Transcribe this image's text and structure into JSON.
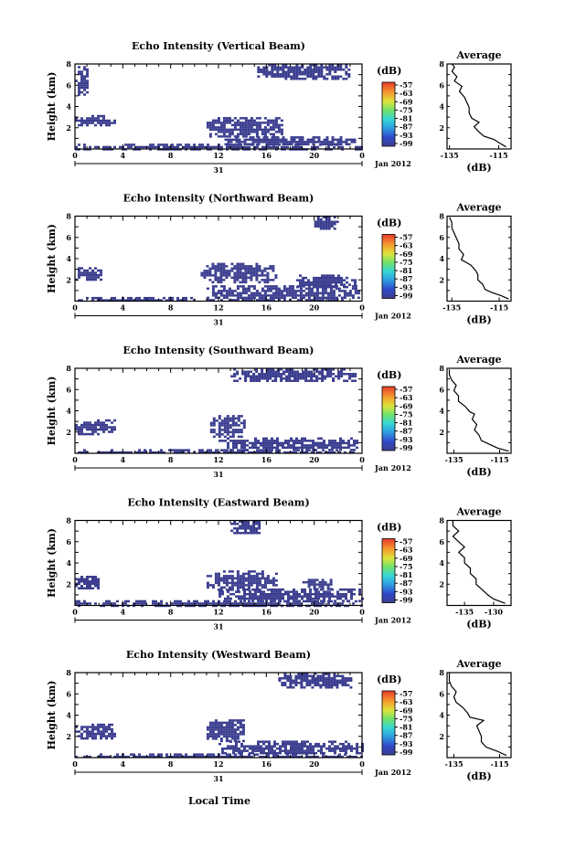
{
  "figure": {
    "xlabel": "Local Time",
    "date_label": "Jan 2012",
    "day_label": "31",
    "cbar_unit": "(dB)",
    "avg_title": "Average",
    "avg_xlabel": "(dB)"
  },
  "chart_data": [
    {
      "type": "heatmap",
      "title": "Echo Intensity (Vertical Beam)",
      "ylabel": "Height (km)",
      "xlim": [
        0,
        24
      ],
      "x_ticks": [
        "0",
        "4",
        "8",
        "12",
        "16",
        "20",
        "0"
      ],
      "ylim": [
        0,
        8
      ],
      "y_ticks": [
        "2",
        "4",
        "6",
        "8"
      ],
      "colorbar": {
        "ticks": [
          "-57",
          "-63",
          "-69",
          "-75",
          "-81",
          "-87",
          "-93",
          "-99"
        ],
        "cmap": "rainbow"
      },
      "echo_regions": [
        {
          "t": [
            0.0,
            1.0
          ],
          "h": [
            5.2,
            7.8
          ]
        },
        {
          "t": [
            0.0,
            3.3
          ],
          "h": [
            2.2,
            3.2
          ]
        },
        {
          "t": [
            11.0,
            17.2
          ],
          "h": [
            1.2,
            3.0
          ]
        },
        {
          "t": [
            0.0,
            24.0
          ],
          "h": [
            0.0,
            0.5
          ]
        },
        {
          "t": [
            12.5,
            23.5
          ],
          "h": [
            0.4,
            1.2
          ]
        },
        {
          "t": [
            15.0,
            23.0
          ],
          "h": [
            6.6,
            8.0
          ]
        }
      ],
      "average": {
        "title": "Average",
        "xlim": [
          -136,
          -110
        ],
        "x_ticks": [
          "-135",
          "-115"
        ],
        "y_ticks": [
          "2",
          "4",
          "6",
          "8"
        ],
        "profile": [
          [
            -112,
            0.2
          ],
          [
            -115,
            0.6
          ],
          [
            -117,
            0.9
          ],
          [
            -121,
            1.2
          ],
          [
            -123,
            1.6
          ],
          [
            -125,
            2.1
          ],
          [
            -123,
            2.5
          ],
          [
            -126,
            2.9
          ],
          [
            -127,
            3.4
          ],
          [
            -127,
            3.9
          ],
          [
            -128,
            4.4
          ],
          [
            -129,
            4.9
          ],
          [
            -131,
            5.4
          ],
          [
            -130,
            5.9
          ],
          [
            -133,
            6.4
          ],
          [
            -132,
            6.8
          ],
          [
            -134,
            7.3
          ],
          [
            -133,
            7.7
          ],
          [
            -134,
            8.0
          ]
        ]
      }
    },
    {
      "type": "heatmap",
      "title": "Echo Intensity (Northward Beam)",
      "ylabel": "Height (km)",
      "xlim": [
        0,
        24
      ],
      "x_ticks": [
        "0",
        "4",
        "8",
        "12",
        "16",
        "20",
        "0"
      ],
      "ylim": [
        0,
        8
      ],
      "y_ticks": [
        "2",
        "4",
        "6",
        "8"
      ],
      "colorbar": {
        "ticks": [
          "-57",
          "-63",
          "-69",
          "-75",
          "-81",
          "-87",
          "-93",
          "-99"
        ],
        "cmap": "rainbow"
      },
      "echo_regions": [
        {
          "t": [
            0.0,
            2.2
          ],
          "h": [
            2.0,
            3.2
          ]
        },
        {
          "t": [
            10.5,
            16.8
          ],
          "h": [
            1.8,
            3.6
          ]
        },
        {
          "t": [
            11.0,
            23.8
          ],
          "h": [
            0.0,
            1.5
          ]
        },
        {
          "t": [
            0.0,
            10.0
          ],
          "h": [
            0.0,
            0.4
          ]
        },
        {
          "t": [
            18.5,
            23.5
          ],
          "h": [
            1.3,
            2.5
          ]
        },
        {
          "t": [
            20.0,
            22.0
          ],
          "h": [
            6.8,
            8.0
          ]
        }
      ],
      "average": {
        "title": "Average",
        "xlim": [
          -137,
          -110
        ],
        "x_ticks": [
          "-135",
          "-115"
        ],
        "y_ticks": [
          "2",
          "4",
          "6",
          "8"
        ],
        "profile": [
          [
            -111,
            0.2
          ],
          [
            -114,
            0.5
          ],
          [
            -118,
            0.8
          ],
          [
            -121,
            1.1
          ],
          [
            -122,
            1.6
          ],
          [
            -124,
            2.0
          ],
          [
            -124,
            2.5
          ],
          [
            -125,
            2.9
          ],
          [
            -127,
            3.4
          ],
          [
            -131,
            3.9
          ],
          [
            -130,
            4.4
          ],
          [
            -132,
            4.9
          ],
          [
            -132,
            5.4
          ],
          [
            -133,
            5.9
          ],
          [
            -134,
            6.4
          ],
          [
            -135,
            6.9
          ],
          [
            -135,
            7.4
          ],
          [
            -136,
            7.9
          ]
        ]
      }
    },
    {
      "type": "heatmap",
      "title": "Echo Intensity (Southward Beam)",
      "ylabel": "Height (km)",
      "xlim": [
        0,
        24
      ],
      "x_ticks": [
        "0",
        "4",
        "8",
        "12",
        "16",
        "20",
        "0"
      ],
      "ylim": [
        0,
        8
      ],
      "y_ticks": [
        "2",
        "4",
        "6",
        "8"
      ],
      "colorbar": {
        "ticks": [
          "-57",
          "-63",
          "-69",
          "-75",
          "-81",
          "-87",
          "-93",
          "-99"
        ],
        "cmap": "rainbow"
      },
      "echo_regions": [
        {
          "t": [
            0.0,
            3.3
          ],
          "h": [
            1.8,
            3.2
          ]
        },
        {
          "t": [
            11.3,
            14.2
          ],
          "h": [
            1.6,
            3.6
          ]
        },
        {
          "t": [
            0.0,
            23.5
          ],
          "h": [
            0.0,
            0.4
          ]
        },
        {
          "t": [
            12.0,
            23.5
          ],
          "h": [
            0.4,
            1.5
          ]
        },
        {
          "t": [
            13.0,
            23.5
          ],
          "h": [
            6.8,
            8.0
          ]
        }
      ],
      "average": {
        "title": "Average",
        "xlim": [
          -138,
          -110
        ],
        "x_ticks": [
          "-135",
          "-115"
        ],
        "y_ticks": [
          "2",
          "4",
          "6",
          "8"
        ],
        "profile": [
          [
            -111,
            0.2
          ],
          [
            -116,
            0.5
          ],
          [
            -119,
            0.8
          ],
          [
            -123,
            1.2
          ],
          [
            -124,
            1.7
          ],
          [
            -126,
            2.2
          ],
          [
            -125,
            2.7
          ],
          [
            -127,
            3.2
          ],
          [
            -126,
            3.7
          ],
          [
            -128,
            3.9
          ],
          [
            -130,
            4.4
          ],
          [
            -133,
            4.9
          ],
          [
            -133,
            5.4
          ],
          [
            -135,
            5.9
          ],
          [
            -134,
            6.4
          ],
          [
            -136,
            6.9
          ],
          [
            -137,
            7.4
          ],
          [
            -137,
            7.9
          ]
        ]
      }
    },
    {
      "type": "heatmap",
      "title": "Echo Intensity (Eastward Beam)",
      "ylabel": "Height (km)",
      "xlim": [
        0,
        24
      ],
      "x_ticks": [
        "0",
        "4",
        "8",
        "12",
        "16",
        "20",
        "0"
      ],
      "ylim": [
        0,
        8
      ],
      "y_ticks": [
        "2",
        "4",
        "6",
        "8"
      ],
      "colorbar": {
        "ticks": [
          "-57",
          "-63",
          "-69",
          "-75",
          "-81",
          "-87",
          "-93",
          "-99"
        ],
        "cmap": "rainbow"
      },
      "echo_regions": [
        {
          "t": [
            0.0,
            2.0
          ],
          "h": [
            1.6,
            2.8
          ]
        },
        {
          "t": [
            11.0,
            16.8
          ],
          "h": [
            1.5,
            3.3
          ]
        },
        {
          "t": [
            0.0,
            24.0
          ],
          "h": [
            0.0,
            0.5
          ]
        },
        {
          "t": [
            12.0,
            24.0
          ],
          "h": [
            0.5,
            1.6
          ]
        },
        {
          "t": [
            13.0,
            15.5
          ],
          "h": [
            6.8,
            8.0
          ]
        },
        {
          "t": [
            19.0,
            21.5
          ],
          "h": [
            1.6,
            2.5
          ]
        }
      ],
      "average": {
        "title": "Average",
        "xlim": [
          -138,
          -127
        ],
        "x_ticks": [
          "-135",
          "-130"
        ],
        "y_ticks": [
          "2",
          "4",
          "6",
          "8"
        ],
        "profile": [
          [
            -128,
            0.2
          ],
          [
            -130,
            0.6
          ],
          [
            -131,
            1.0
          ],
          [
            -132,
            1.5
          ],
          [
            -133,
            2.0
          ],
          [
            -133,
            2.5
          ],
          [
            -134,
            3.0
          ],
          [
            -134,
            3.5
          ],
          [
            -135,
            4.0
          ],
          [
            -135,
            4.5
          ],
          [
            -136,
            5.0
          ],
          [
            -135,
            5.5
          ],
          [
            -136,
            6.0
          ],
          [
            -137,
            6.5
          ],
          [
            -136,
            7.0
          ],
          [
            -137,
            7.5
          ],
          [
            -137,
            8.0
          ]
        ]
      }
    },
    {
      "type": "heatmap",
      "title": "Echo Intensity (Westward Beam)",
      "ylabel": "Height (km)",
      "xlim": [
        0,
        24
      ],
      "x_ticks": [
        "0",
        "4",
        "8",
        "12",
        "16",
        "20",
        "0"
      ],
      "ylim": [
        0,
        8
      ],
      "y_ticks": [
        "2",
        "4",
        "6",
        "8"
      ],
      "colorbar": {
        "ticks": [
          "-57",
          "-63",
          "-69",
          "-75",
          "-81",
          "-87",
          "-93",
          "-99"
        ],
        "cmap": "rainbow"
      },
      "echo_regions": [
        {
          "t": [
            0.0,
            3.3
          ],
          "h": [
            1.8,
            3.2
          ]
        },
        {
          "t": [
            11.0,
            14.2
          ],
          "h": [
            1.6,
            3.6
          ]
        },
        {
          "t": [
            0.0,
            24.0
          ],
          "h": [
            0.0,
            0.4
          ]
        },
        {
          "t": [
            12.0,
            24.0
          ],
          "h": [
            0.4,
            1.6
          ]
        },
        {
          "t": [
            17.0,
            23.0
          ],
          "h": [
            6.6,
            8.0
          ]
        }
      ],
      "average": {
        "title": "Average",
        "xlim": [
          -138,
          -110
        ],
        "x_ticks": [
          "-135",
          "-115"
        ],
        "y_ticks": [
          "2",
          "4",
          "6",
          "8"
        ],
        "profile": [
          [
            -112,
            0.2
          ],
          [
            -116,
            0.6
          ],
          [
            -121,
            1.0
          ],
          [
            -123,
            1.5
          ],
          [
            -123,
            2.0
          ],
          [
            -124,
            2.5
          ],
          [
            -125,
            3.0
          ],
          [
            -122,
            3.5
          ],
          [
            -128,
            3.8
          ],
          [
            -129,
            4.2
          ],
          [
            -131,
            4.7
          ],
          [
            -134,
            5.2
          ],
          [
            -135,
            5.7
          ],
          [
            -134,
            6.2
          ],
          [
            -136,
            6.7
          ],
          [
            -137,
            7.2
          ],
          [
            -137,
            7.7
          ],
          [
            -137,
            8.0
          ]
        ]
      }
    }
  ]
}
